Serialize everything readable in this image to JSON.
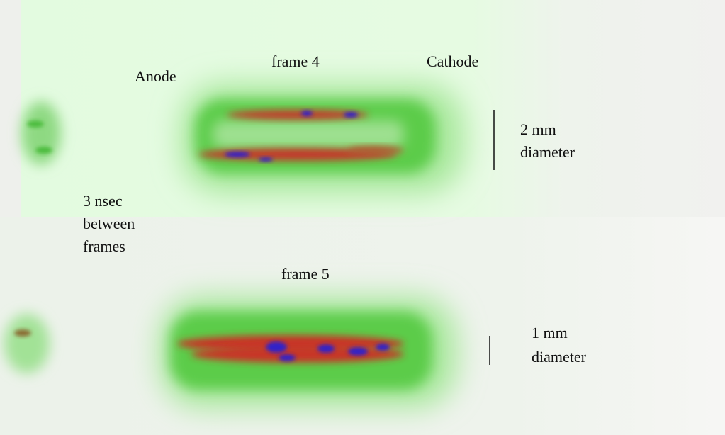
{
  "labels": {
    "anode": "Anode",
    "cathode": "Cathode",
    "timing": [
      "3 nsec",
      "between",
      "frames"
    ]
  },
  "frames": [
    {
      "title": "frame 4",
      "scale": [
        "2 mm",
        "diameter"
      ]
    },
    {
      "title": "frame 5",
      "scale": [
        "1 mm",
        "diameter"
      ]
    }
  ]
}
